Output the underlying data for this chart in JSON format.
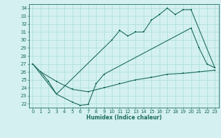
{
  "line1_x": [
    0,
    1,
    2,
    3,
    10,
    11,
    12,
    13,
    14,
    15,
    16,
    17,
    18,
    19,
    20,
    23
  ],
  "line1_y": [
    27,
    26,
    24.8,
    23.2,
    30,
    31.2,
    30.5,
    31,
    31,
    32.5,
    33.2,
    34,
    33.2,
    33.8,
    33.8,
    26.5
  ],
  "line2_x": [
    0,
    3,
    5,
    6,
    7,
    8,
    9,
    20,
    21,
    22,
    23
  ],
  "line2_y": [
    27,
    23.2,
    22.2,
    21.8,
    21.9,
    24.5,
    25.7,
    31.5,
    29,
    27,
    26.5
  ],
  "line3_x": [
    1,
    3,
    5,
    7,
    9,
    11,
    13,
    15,
    17,
    19,
    21,
    23
  ],
  "line3_y": [
    26,
    24.8,
    23.8,
    23.5,
    24.0,
    24.5,
    25.0,
    25.3,
    25.7,
    25.8,
    26.0,
    26.2
  ],
  "color": "#1a6b5a",
  "bg_color": "#d4f0f0",
  "grid_color": "#aadddd",
  "xlabel": "Humidex (Indice chaleur)",
  "xlim": [
    -0.5,
    23.5
  ],
  "ylim": [
    21.5,
    34.5
  ],
  "yticks": [
    22,
    23,
    24,
    25,
    26,
    27,
    28,
    29,
    30,
    31,
    32,
    33,
    34
  ],
  "xticks": [
    0,
    1,
    2,
    3,
    4,
    5,
    6,
    7,
    8,
    9,
    10,
    11,
    12,
    13,
    14,
    15,
    16,
    17,
    18,
    19,
    20,
    21,
    22,
    23
  ]
}
